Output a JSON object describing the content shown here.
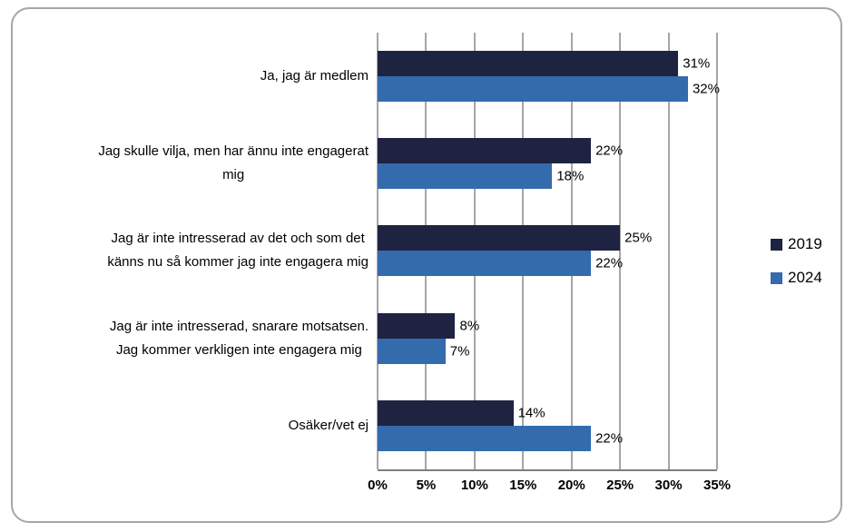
{
  "chart_data": {
    "type": "bar",
    "orientation": "horizontal",
    "title": "",
    "categories": [
      "Ja, jag är medlem",
      "Jag skulle vilja, men har ännu inte engagerat mig",
      "Jag är inte intresserad av det och som det känns nu så kommer jag inte engagera mig",
      "Jag är inte intresserad, snarare motsatsen. Jag kommer verkligen inte engagera mig",
      "Osäker/vet ej"
    ],
    "category_lines": [
      [
        "Ja, jag är medlem"
      ],
      [
        "Jag skulle vilja, men har ännu inte engagerat",
        "mig"
      ],
      [
        "Jag är inte intresserad av det och som det",
        "känns nu så kommer jag inte engagera mig"
      ],
      [
        "Jag är inte intresserad, snarare motsatsen.",
        "Jag kommer verkligen inte engagera mig"
      ],
      [
        "Osäker/vet ej"
      ]
    ],
    "series": [
      {
        "name": "2019",
        "color": "#1f2342",
        "values": [
          31,
          22,
          25,
          8,
          14
        ]
      },
      {
        "name": "2024",
        "color": "#346bad",
        "values": [
          32,
          18,
          22,
          7,
          22
        ]
      }
    ],
    "value_suffix": "%",
    "data_labels": {
      "2019": [
        "31%",
        "22%",
        "25%",
        "8%",
        "14%"
      ],
      "2024": [
        "32%",
        "18%",
        "22%",
        "7%",
        "22%"
      ]
    },
    "x_axis": {
      "ticks": [
        "0%",
        "5%",
        "10%",
        "15%",
        "20%",
        "25%",
        "30%",
        "35%"
      ],
      "min": 0,
      "max": 35,
      "step": 5
    },
    "grid": true,
    "legend_position": "right",
    "colors": {
      "gridline": "#a6a6a6",
      "axis": "#7f7f7f",
      "frame_border": "#a6a6a6",
      "background": "#ffffff",
      "text": "#000000"
    }
  }
}
